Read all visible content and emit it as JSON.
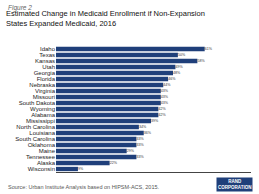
{
  "chart_data": {
    "type": "bar",
    "orientation": "horizontal",
    "title": "Estimated Change in Medicaid Enrollment if Non-Expansion\nStates Expanded Medicaid, 2016",
    "annotations": [
      "Figure 2",
      "Source: Urban Institute Analysis based on HIPSM-ACS, 2015.",
      "RAND\nCORPORATION"
    ],
    "categories": [
      "Idaho",
      "Texas",
      "Kansas",
      "Utah",
      "Georgia",
      "Florida",
      "Nebraska",
      "Virginia",
      "Missouri",
      "South Dakota",
      "Wyoming",
      "Alabama",
      "Mississippi",
      "North Carolina",
      "Louisiana",
      "South Carolina",
      "Oklahoma",
      "Maine",
      "Tennessee",
      "Alaska",
      "Wisconsin"
    ],
    "values": [
      61,
      50,
      58,
      49,
      48,
      46,
      44,
      43,
      43,
      43,
      42,
      42,
      39,
      34,
      36,
      33,
      33,
      29,
      33,
      22,
      9
    ],
    "value_labels": [
      "61%",
      "50%",
      "58%",
      "49%",
      "48%",
      "46%",
      "44%",
      "43%",
      "43%",
      "43%",
      "42%",
      "42%",
      "39%",
      "34%",
      "36%",
      "33%",
      "33%",
      "29%",
      "33%",
      "22%",
      "9%"
    ],
    "data_labels": true,
    "color": "#1f3f7a",
    "xlim": [
      0,
      80
    ],
    "tick_labels": "y",
    "grid": false
  }
}
